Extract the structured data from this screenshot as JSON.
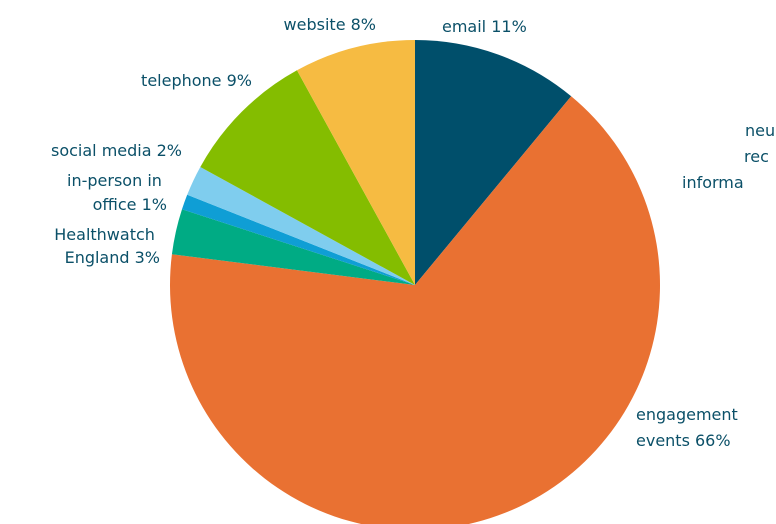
{
  "chart_data": {
    "type": "pie",
    "start_angle_deg": 0,
    "direction": "clockwise",
    "slices": [
      {
        "label": "email 11%",
        "value": 11,
        "color": "#004f6b"
      },
      {
        "label": "neutral request for information",
        "value": 0,
        "color": "#00b0f0"
      },
      {
        "label": "engagement events 66%",
        "value": 66,
        "color": "#e97132"
      },
      {
        "label": "Healthwatch England 3%",
        "value": 3,
        "color": "#00ab84"
      },
      {
        "label": "in-person in office 1%",
        "value": 1,
        "color": "#0f9ed5"
      },
      {
        "label": "social media 2%",
        "value": 2,
        "color": "#7fcdee"
      },
      {
        "label": "telephone 9%",
        "value": 9,
        "color": "#84bd00"
      },
      {
        "label": "website 8%",
        "value": 8,
        "color": "#f6bb42"
      }
    ]
  }
}
